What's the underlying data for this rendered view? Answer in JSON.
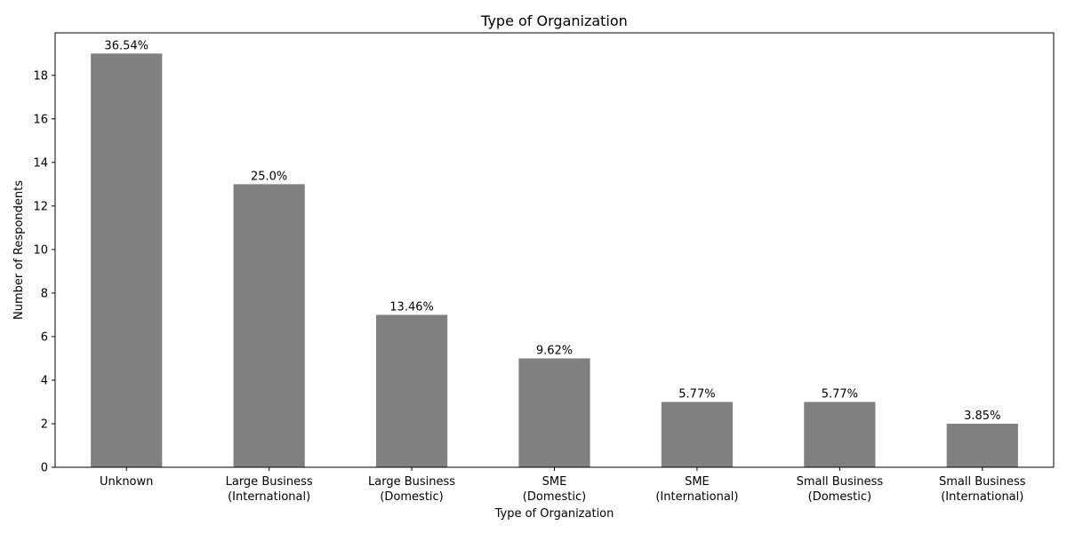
{
  "chart_data": {
    "type": "bar",
    "title": "Type of Organization",
    "xlabel": "Type of Organization",
    "ylabel": "Number of Respondents",
    "categories": [
      [
        "Unknown"
      ],
      [
        "Large Business",
        "(International)"
      ],
      [
        "Large Business",
        "(Domestic)"
      ],
      [
        "SME",
        "(Domestic)"
      ],
      [
        "SME",
        "(International)"
      ],
      [
        "Small Business",
        "(Domestic)"
      ],
      [
        "Small Business",
        "(International)"
      ]
    ],
    "values": [
      19,
      13,
      7,
      5,
      3,
      3,
      2
    ],
    "labels": [
      "36.54%",
      "25.0%",
      "13.46%",
      "9.62%",
      "5.77%",
      "5.77%",
      "3.85%"
    ],
    "ylim": [
      0,
      19.95
    ],
    "yticks": [
      0,
      2,
      4,
      6,
      8,
      10,
      12,
      14,
      16,
      18
    ],
    "bar_color": "#808080",
    "grid": false
  }
}
